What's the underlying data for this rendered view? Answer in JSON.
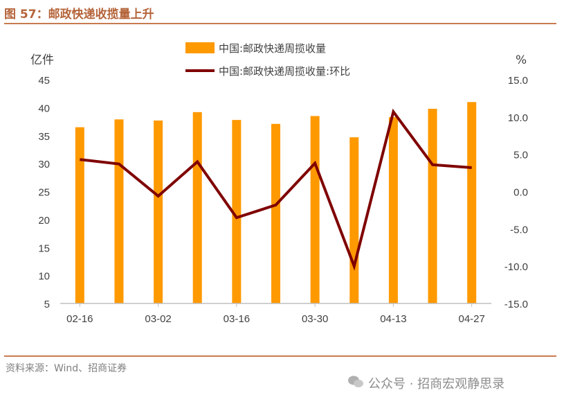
{
  "header": {
    "title": "图 57：邮政快递收揽量上升"
  },
  "footer": {
    "source": "资料来源：Wind、招商证券",
    "watermark": "公众号 · 招商宏观静思录"
  },
  "colors": {
    "bar": "#ff9900",
    "line": "#7f0000",
    "accent": "#c87a4f",
    "axis": "#bfbfbf"
  },
  "chart_data": {
    "type": "bar",
    "left_unit": "亿件",
    "right_unit": "%",
    "legend": [
      "中国:邮政快递周揽收量",
      "中国:邮政快递周揽收量:环比"
    ],
    "x_tick_labels": [
      "02-16",
      "03-02",
      "03-16",
      "03-30",
      "04-13",
      "04-27"
    ],
    "categories": [
      "02-16",
      "02-23",
      "03-02",
      "03-09",
      "03-16",
      "03-23",
      "03-30",
      "04-06",
      "04-13",
      "04-20",
      "04-27"
    ],
    "series": [
      {
        "name": "中国:邮政快递周揽收量",
        "type": "bar",
        "axis": "left",
        "values": [
          36.5,
          37.9,
          37.7,
          39.2,
          37.8,
          37.1,
          38.5,
          34.7,
          38.3,
          39.8,
          41.0
        ]
      },
      {
        "name": "中国:邮政快递周揽收量:环比",
        "type": "line",
        "axis": "right",
        "values": [
          4.3,
          3.7,
          -0.6,
          4.0,
          -3.5,
          -1.8,
          3.8,
          -10.0,
          10.7,
          3.6,
          3.2
        ]
      }
    ],
    "ylim_left": [
      5,
      45
    ],
    "yticks_left": [
      5,
      10,
      15,
      20,
      25,
      30,
      35,
      40,
      45
    ],
    "ylim_right": [
      -15,
      15
    ],
    "yticks_right": [
      "-15.0",
      "-10.0",
      "-5.0",
      "0.0",
      "5.0",
      "10.0",
      "15.0"
    ],
    "grid": false,
    "legend_position": "top-center"
  }
}
